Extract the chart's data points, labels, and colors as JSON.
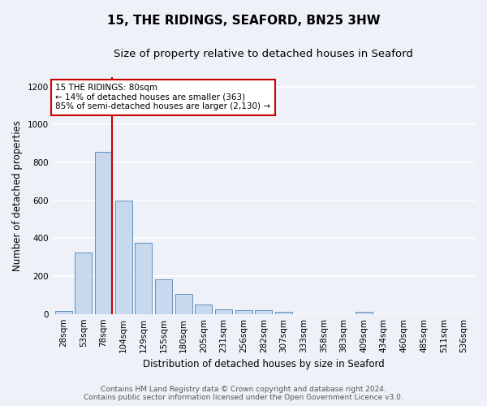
{
  "title": "15, THE RIDINGS, SEAFORD, BN25 3HW",
  "subtitle": "Size of property relative to detached houses in Seaford",
  "xlabel": "Distribution of detached houses by size in Seaford",
  "ylabel": "Number of detached properties",
  "footnote1": "Contains HM Land Registry data © Crown copyright and database right 2024.",
  "footnote2": "Contains public sector information licensed under the Open Government Licence v3.0.",
  "categories": [
    "28sqm",
    "53sqm",
    "78sqm",
    "104sqm",
    "129sqm",
    "155sqm",
    "180sqm",
    "205sqm",
    "231sqm",
    "256sqm",
    "282sqm",
    "307sqm",
    "333sqm",
    "358sqm",
    "383sqm",
    "409sqm",
    "434sqm",
    "460sqm",
    "485sqm",
    "511sqm",
    "536sqm"
  ],
  "values": [
    15,
    325,
    855,
    600,
    375,
    185,
    107,
    48,
    25,
    18,
    20,
    10,
    0,
    0,
    0,
    10,
    0,
    0,
    0,
    0,
    0
  ],
  "bar_color": "#c8d8ed",
  "bar_edge_color": "#6090c0",
  "vline_index": 2,
  "vline_color": "#cc0000",
  "annotation_text": "15 THE RIDINGS: 80sqm\n← 14% of detached houses are smaller (363)\n85% of semi-detached houses are larger (2,130) →",
  "annotation_box_color": "white",
  "annotation_box_edge": "#cc0000",
  "ylim": [
    0,
    1250
  ],
  "yticks": [
    0,
    200,
    400,
    600,
    800,
    1000,
    1200
  ],
  "bg_color": "#eef2f8",
  "grid_color": "white",
  "title_fontsize": 11,
  "subtitle_fontsize": 9.5,
  "label_fontsize": 8.5,
  "tick_fontsize": 7.5,
  "footnote_fontsize": 6.5
}
